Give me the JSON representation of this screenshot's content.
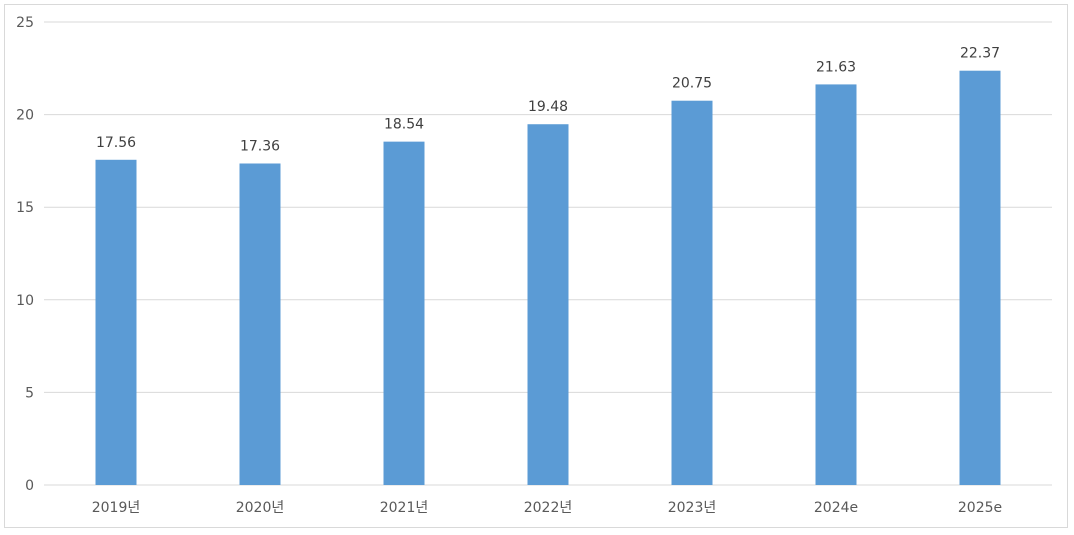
{
  "chart_data": {
    "type": "bar",
    "title": "",
    "xlabel": "",
    "ylabel": "",
    "categories": [
      "2019년",
      "2020년",
      "2021년",
      "2022년",
      "2023년",
      "2024e",
      "2025e"
    ],
    "values": [
      17.56,
      17.36,
      18.54,
      19.48,
      20.75,
      21.63,
      22.37
    ],
    "data_labels": [
      "17.56",
      "17.36",
      "18.54",
      "19.48",
      "20.75",
      "21.63",
      "22.37"
    ],
    "ylim": [
      0,
      25
    ],
    "yticks": [
      0,
      5,
      10,
      15,
      20,
      25
    ],
    "grid": true,
    "legend": "none",
    "colors": {
      "bar": "#5b9bd5",
      "grid": "#d9d9d9",
      "axis": "#d9d9d9"
    }
  }
}
